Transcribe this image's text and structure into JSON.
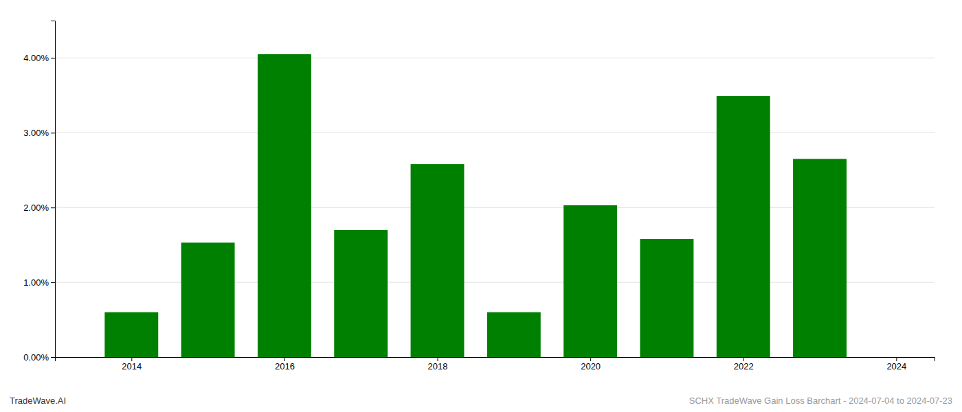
{
  "chart_data": {
    "type": "bar",
    "x": [
      2014,
      2015,
      2016,
      2017,
      2018,
      2019,
      2020,
      2021,
      2022,
      2023
    ],
    "values": [
      0.006,
      0.0153,
      0.0405,
      0.017,
      0.0258,
      0.006,
      0.0203,
      0.0158,
      0.0349,
      0.0265
    ],
    "color": "#008000",
    "xlim": [
      2013.0,
      2024.5
    ],
    "xticks": [
      2014,
      2016,
      2018,
      2020,
      2022,
      2024
    ],
    "ylim": [
      0,
      0.045
    ],
    "yticks": [
      {
        "value": 0.0,
        "label": "0.00%"
      },
      {
        "value": 0.01,
        "label": "1.00%"
      },
      {
        "value": 0.02,
        "label": "2.00%"
      },
      {
        "value": 0.03,
        "label": "3.00%"
      },
      {
        "value": 0.04,
        "label": "4.00%"
      }
    ],
    "grid": true,
    "annotations": [
      "TradeWave.AI",
      "SCHX TradeWave Gain Loss Barchart - 2024-07-04 to 2024-07-23"
    ]
  }
}
